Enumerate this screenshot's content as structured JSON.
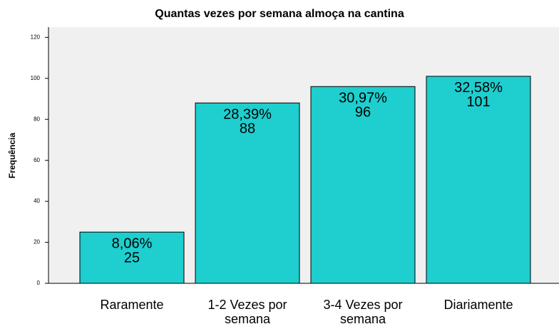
{
  "chart_data": {
    "type": "bar",
    "title": "Quantas vezes por semana almoça na cantina",
    "ylabel": "Frequência",
    "categories": [
      "Raramente",
      "1-2 Vezes por semana",
      "3-4 Vezes por semana",
      "Diariamente"
    ],
    "values": [
      25,
      88,
      96,
      101
    ],
    "percentages": [
      8.06,
      28.39,
      30.97,
      32.58
    ],
    "percentage_labels": [
      "8,06%",
      "28,39%",
      "30,97%",
      "32,58%"
    ],
    "color": "#1fcece",
    "ylim": [
      0,
      125
    ],
    "yticks": [
      0,
      20,
      40,
      60,
      80,
      100,
      120
    ]
  }
}
